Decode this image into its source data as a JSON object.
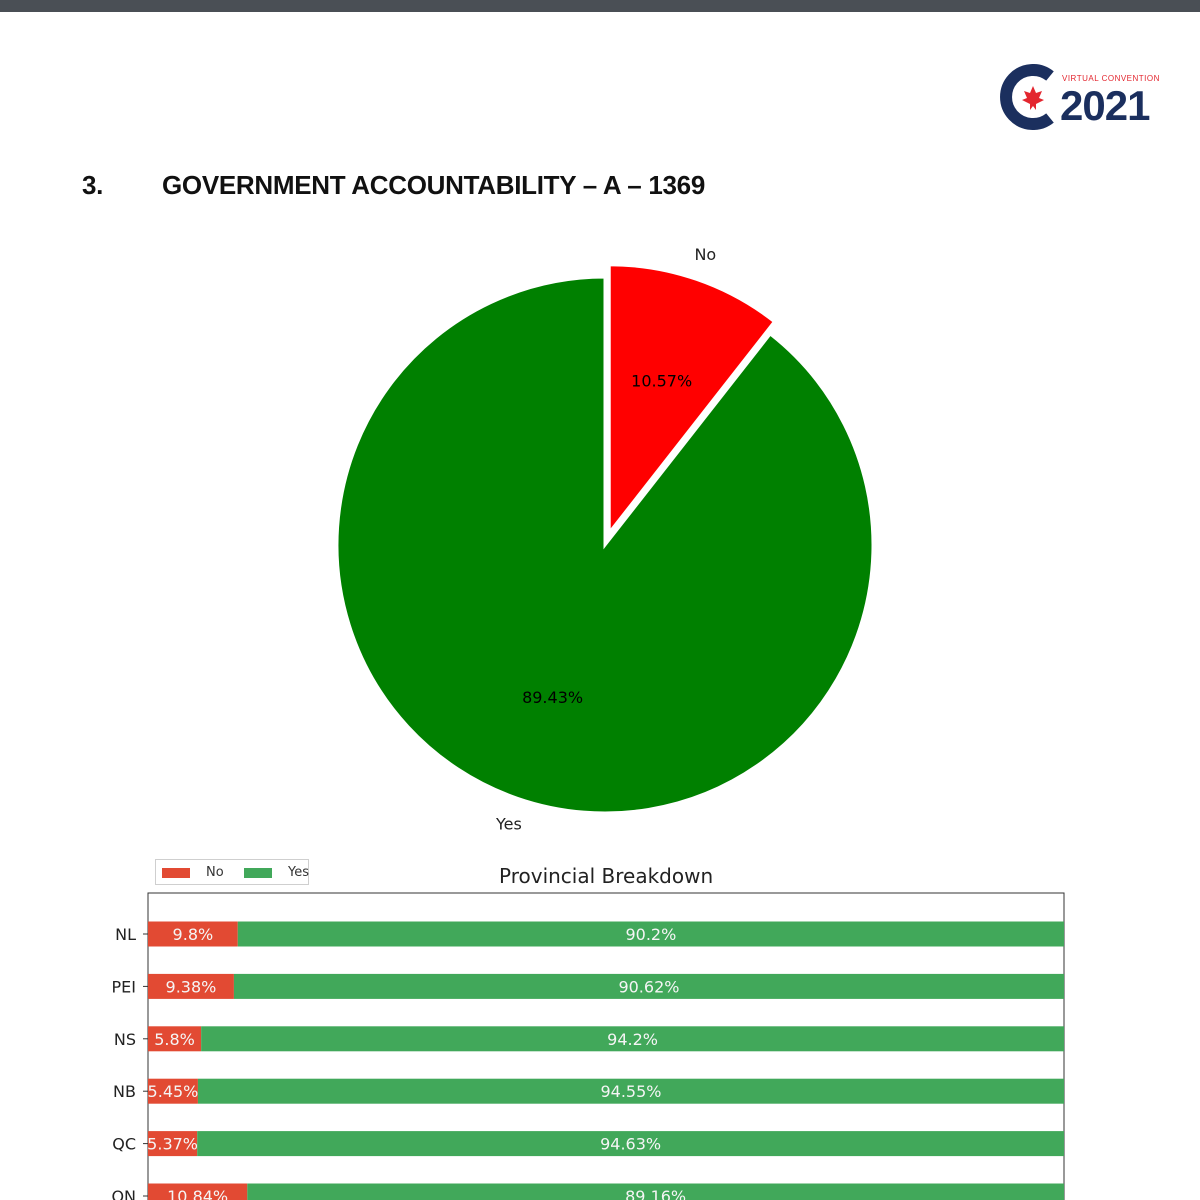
{
  "page": {
    "logo_text": "VIRTUAL CONVENTION",
    "logo_year": "2021",
    "heading_number": "3.",
    "heading_title": "GOVERNMENT ACCOUNTABILITY – A – 1369"
  },
  "colors": {
    "pie_no": "#ff0000",
    "pie_yes": "#008000",
    "bar_no": "#e24a33",
    "bar_yes": "#41a85a",
    "logo_navy": "#1b2f5e",
    "logo_red": "#e3262f"
  },
  "chart_data": [
    {
      "type": "pie",
      "labels": [
        "No",
        "Yes"
      ],
      "values": [
        10.57,
        89.43
      ],
      "value_labels": [
        "10.57%",
        "89.43%"
      ],
      "colors": [
        "#ff0000",
        "#008000"
      ],
      "exploded": "No",
      "start": "top, clockwise"
    },
    {
      "type": "bar",
      "orientation": "horizontal-stacked",
      "title": "Provincial Breakdown",
      "categories": [
        "NL",
        "PEI",
        "NS",
        "NB",
        "QC",
        "ON"
      ],
      "series": [
        {
          "name": "No",
          "values": [
            9.8,
            9.38,
            5.8,
            5.45,
            5.37,
            10.84
          ],
          "labels": [
            "9.8%",
            "9.38%",
            "5.8%",
            "5.45%",
            "5.37%",
            "10.84%"
          ]
        },
        {
          "name": "Yes",
          "values": [
            90.2,
            90.62,
            94.2,
            94.55,
            94.63,
            89.16
          ],
          "labels": [
            "90.2%",
            "90.62%",
            "94.2%",
            "94.55%",
            "94.63%",
            "89.16%"
          ]
        }
      ],
      "xlim": [
        0,
        100
      ],
      "legend": "top-left",
      "grid": false
    }
  ]
}
